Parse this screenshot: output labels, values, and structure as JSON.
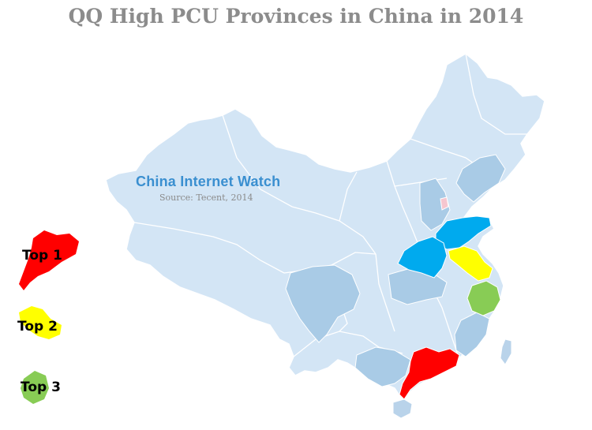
{
  "title": "QQ High PCU Provinces in China in 2014",
  "watermark": "China Internet Watch",
  "source": "Source: Tecent, 2014",
  "colors": {
    "base": "#d3e5f5",
    "shade_mid": "#a9cbe6",
    "rank_1": "#ff0000",
    "rank_2": "#ffff00",
    "rank_3": "#88cc55",
    "highlight_blue": "#00aaee",
    "border": "#ffffff"
  },
  "legend": [
    {
      "rank": 1,
      "label": "Top 1",
      "province_shape": "guangdong",
      "color": "#ff0000"
    },
    {
      "rank": 2,
      "label": "Top 2",
      "province_shape": "jiangsu",
      "color": "#ffff00"
    },
    {
      "rank": 3,
      "label": "Top 3",
      "province_shape": "zhejiang",
      "color": "#88cc55"
    }
  ],
  "map_highlights": [
    {
      "province": "Guangdong",
      "rank": 1,
      "color": "#ff0000"
    },
    {
      "province": "Jiangsu",
      "rank": 2,
      "color": "#ffff00"
    },
    {
      "province": "Zhejiang",
      "rank": 3,
      "color": "#88cc55"
    },
    {
      "province": "Shandong",
      "color": "#00aaee"
    },
    {
      "province": "Henan",
      "color": "#00aaee"
    }
  ]
}
